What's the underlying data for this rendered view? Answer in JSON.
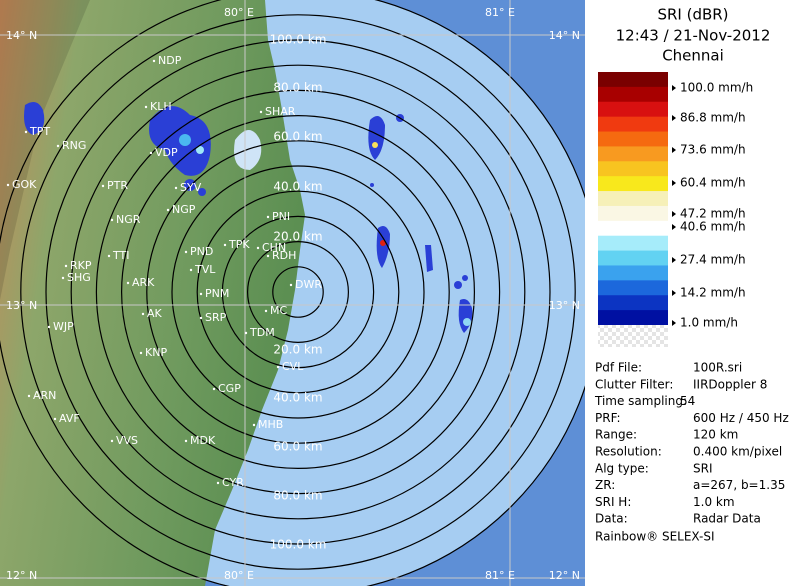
{
  "map": {
    "longitude_labels": [
      "80° E",
      "81° E"
    ],
    "latitude_labels": [
      "14° N",
      "13° N",
      "12° N"
    ],
    "range_labels": [
      "20.0 km",
      "40.0 km",
      "60.0 km",
      "80.0 km",
      "100.0 km"
    ],
    "places": [
      "NDP",
      "KLH",
      "SHAR",
      "TPT",
      "RNG",
      "VDP",
      "GOK",
      "PTR",
      "SYV",
      "NGR",
      "NGP",
      "PNI",
      "TTI",
      "PND",
      "TPK",
      "CHN",
      "RDH",
      "RKP",
      "SHG",
      "ARK",
      "TVL",
      "DWR",
      "PNM",
      "AK",
      "SRP",
      "MC",
      "WJP",
      "TDM",
      "KNP",
      "CVL",
      "ARN",
      "CGP",
      "AVF",
      "MHB",
      "VVS",
      "MDK",
      "CYR"
    ]
  },
  "legend": {
    "title": "SRI (dBR)",
    "time": "12:43 / 21-Nov-2012",
    "site": "Chennai",
    "levels": [
      "100.0 mm/h",
      "86.8 mm/h",
      "73.6 mm/h",
      "60.4 mm/h",
      "47.2 mm/h",
      "40.6 mm/h",
      "27.4 mm/h",
      "14.2 mm/h",
      "1.0 mm/h"
    ]
  },
  "info": {
    "rows": [
      [
        "Pdf File:",
        "100R.sri"
      ],
      [
        "Clutter Filter:",
        "IIRDoppler 8"
      ],
      [
        "Time sampling:",
        "54"
      ],
      [
        "PRF:",
        "600 Hz / 450 Hz"
      ],
      [
        "Range:",
        "120 km"
      ],
      [
        "Resolution:",
        "0.400 km/pixel"
      ],
      [
        "Alg type:",
        "SRI"
      ],
      [
        "ZR:",
        "a=267, b=1.35"
      ],
      [
        "SRI H:",
        "1.0 km"
      ],
      [
        "Data:",
        "Radar Data"
      ]
    ]
  },
  "footer": "Rainbow® SELEX-SI"
}
